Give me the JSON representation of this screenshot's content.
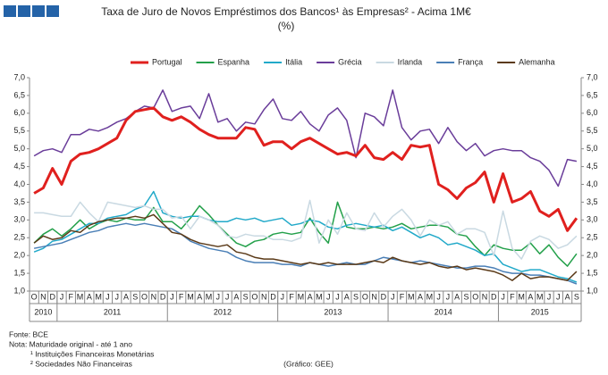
{
  "chart_data": {
    "type": "line",
    "title": "Taxa de Juro de Novos Empréstimos dos Bancos¹ às Empresas² - Acima 1M€",
    "subtitle": "(%)",
    "categories": [
      "O",
      "N",
      "D",
      "J",
      "F",
      "M",
      "A",
      "M",
      "J",
      "J",
      "A",
      "S",
      "O",
      "N",
      "D",
      "J",
      "F",
      "M",
      "A",
      "M",
      "J",
      "J",
      "A",
      "S",
      "O",
      "N",
      "D",
      "J",
      "F",
      "M",
      "A",
      "M",
      "J",
      "J",
      "A",
      "S",
      "O",
      "N",
      "D",
      "J",
      "F",
      "M",
      "A",
      "M",
      "J",
      "J",
      "A",
      "S",
      "O",
      "N",
      "D",
      "J",
      "F",
      "M",
      "A",
      "M",
      "J",
      "J",
      "A",
      "S"
    ],
    "years": [
      "2010",
      "2011",
      "2012",
      "2013",
      "2014",
      "2015"
    ],
    "ylim": [
      1,
      7
    ],
    "yticks": [
      {
        "value": 1,
        "label": "1,0"
      },
      {
        "value": 1.5,
        "label": "1,5"
      },
      {
        "value": 2,
        "label": "2,0"
      },
      {
        "value": 2.5,
        "label": "2,5"
      },
      {
        "value": 3,
        "label": "3,0"
      },
      {
        "value": 3.5,
        "label": "3,5"
      },
      {
        "value": 4,
        "label": "4,0"
      },
      {
        "value": 4.5,
        "label": "4,5"
      },
      {
        "value": 5,
        "label": "5,0"
      },
      {
        "value": 5.5,
        "label": "5,5"
      },
      {
        "value": 6,
        "label": "6,0"
      },
      {
        "value": 6.5,
        "label": "6,5"
      },
      {
        "value": 7,
        "label": "7,0"
      }
    ],
    "y2lim": [
      1,
      7
    ],
    "y2ticks": [
      {
        "value": 1,
        "label": "1,0"
      },
      {
        "value": 1.5,
        "label": "1,5"
      },
      {
        "value": 2,
        "label": "2,0"
      },
      {
        "value": 2.5,
        "label": "2,5"
      },
      {
        "value": 3,
        "label": "3,0"
      },
      {
        "value": 3.5,
        "label": "3,5"
      },
      {
        "value": 4,
        "label": "4,0"
      },
      {
        "value": 4.5,
        "label": "4,5"
      },
      {
        "value": 5,
        "label": "5,0"
      },
      {
        "value": 5.5,
        "label": "5,5"
      },
      {
        "value": 6,
        "label": "6,0"
      },
      {
        "value": 6.5,
        "label": "6,5"
      },
      {
        "value": 7,
        "label": "7,0"
      }
    ],
    "grid": false,
    "legend": "top",
    "series": [
      {
        "name": "Portugal",
        "color": "#e0201e",
        "values": [
          3.75,
          3.9,
          4.45,
          4.0,
          4.65,
          4.85,
          4.9,
          5.0,
          5.15,
          5.3,
          5.8,
          6.05,
          6.1,
          6.15,
          5.9,
          5.8,
          5.9,
          5.75,
          5.55,
          5.4,
          5.3,
          5.3,
          5.3,
          5.6,
          5.55,
          5.1,
          5.2,
          5.2,
          5.0,
          5.2,
          5.3,
          5.15,
          5.0,
          4.85,
          4.9,
          4.8,
          5.1,
          4.75,
          4.7,
          4.9,
          4.7,
          5.1,
          5.05,
          5.1,
          4.0,
          3.85,
          3.6,
          3.9,
          4.05,
          4.35,
          3.5,
          4.3,
          3.5,
          3.6,
          3.8,
          3.25,
          3.1,
          3.3,
          2.7,
          3.05
        ]
      },
      {
        "name": "Espanha",
        "color": "#23a04a",
        "values": [
          2.35,
          2.6,
          2.75,
          2.55,
          2.75,
          3.0,
          2.75,
          2.9,
          3.0,
          2.95,
          3.05,
          3.0,
          3.0,
          3.35,
          2.95,
          2.95,
          2.75,
          3.05,
          3.4,
          3.15,
          2.85,
          2.6,
          2.35,
          2.25,
          2.4,
          2.45,
          2.6,
          2.65,
          2.6,
          2.65,
          3.05,
          2.65,
          2.35,
          3.5,
          2.8,
          2.75,
          2.75,
          2.8,
          2.75,
          2.8,
          2.9,
          2.75,
          2.8,
          2.85,
          2.85,
          2.8,
          2.6,
          2.55,
          2.25,
          2.0,
          2.3,
          2.2,
          2.15,
          2.15,
          2.35,
          2.05,
          2.3,
          1.95,
          1.7,
          2.05
        ]
      },
      {
        "name": "Itália",
        "color": "#21a9c9",
        "values": [
          2.1,
          2.2,
          2.4,
          2.45,
          2.6,
          2.75,
          2.9,
          2.9,
          3.05,
          3.1,
          3.15,
          3.3,
          3.4,
          3.8,
          3.2,
          3.1,
          3.05,
          3.1,
          3.1,
          3.0,
          2.95,
          2.95,
          3.05,
          3.0,
          3.05,
          2.95,
          3.0,
          3.05,
          2.85,
          2.9,
          3.0,
          2.95,
          2.8,
          2.75,
          2.85,
          2.9,
          2.85,
          2.8,
          2.85,
          2.7,
          2.8,
          2.65,
          2.5,
          2.6,
          2.5,
          2.3,
          2.35,
          2.25,
          2.15,
          2.0,
          2.05,
          1.75,
          1.65,
          1.55,
          1.6,
          1.6,
          1.5,
          1.4,
          1.35,
          1.25
        ]
      },
      {
        "name": "Grécia",
        "color": "#6a3d9a",
        "values": [
          4.8,
          4.95,
          5.0,
          4.9,
          5.4,
          5.4,
          5.55,
          5.5,
          5.6,
          5.75,
          5.85,
          6.05,
          6.2,
          6.15,
          6.65,
          6.05,
          6.15,
          6.2,
          5.85,
          6.55,
          5.75,
          5.85,
          5.5,
          5.75,
          5.7,
          6.1,
          6.4,
          5.85,
          5.8,
          6.05,
          5.7,
          5.5,
          5.95,
          6.15,
          5.8,
          4.75,
          6.0,
          5.9,
          5.65,
          6.65,
          5.6,
          5.25,
          5.5,
          5.55,
          5.15,
          5.6,
          5.2,
          4.95,
          5.15,
          4.8,
          4.95,
          5.0,
          4.95,
          4.95,
          4.75,
          4.65,
          4.4,
          3.95,
          4.7,
          4.65
        ]
      },
      {
        "name": "Irlanda",
        "color": "#c9d9e2",
        "values": [
          3.2,
          3.2,
          3.15,
          3.1,
          3.1,
          3.5,
          3.2,
          2.95,
          3.5,
          3.45,
          3.4,
          3.35,
          3.4,
          3.3,
          3.3,
          3.05,
          3.1,
          2.75,
          3.1,
          3.0,
          2.85,
          2.55,
          2.5,
          2.6,
          2.55,
          2.55,
          2.45,
          2.45,
          2.4,
          2.5,
          3.55,
          2.35,
          3.0,
          2.6,
          3.2,
          2.75,
          2.7,
          3.2,
          2.8,
          3.1,
          3.3,
          3.0,
          2.55,
          3.0,
          2.85,
          2.95,
          2.6,
          2.75,
          2.75,
          2.65,
          2.0,
          3.25,
          2.2,
          1.9,
          2.4,
          2.55,
          2.45,
          2.2,
          2.3,
          2.55
        ]
      },
      {
        "name": "França",
        "color": "#4a7fb6",
        "values": [
          2.2,
          2.25,
          2.3,
          2.35,
          2.45,
          2.55,
          2.65,
          2.7,
          2.8,
          2.85,
          2.9,
          2.85,
          2.9,
          2.85,
          2.8,
          2.75,
          2.6,
          2.4,
          2.3,
          2.2,
          2.15,
          2.1,
          1.95,
          1.85,
          1.8,
          1.8,
          1.8,
          1.75,
          1.75,
          1.7,
          1.8,
          1.75,
          1.7,
          1.75,
          1.8,
          1.75,
          1.75,
          1.85,
          1.95,
          1.9,
          1.85,
          1.8,
          1.85,
          1.8,
          1.75,
          1.7,
          1.65,
          1.65,
          1.7,
          1.7,
          1.65,
          1.55,
          1.5,
          1.5,
          1.45,
          1.45,
          1.4,
          1.35,
          1.3,
          1.2
        ]
      },
      {
        "name": "Alemanha",
        "color": "#5b3a18",
        "values": [
          2.35,
          2.55,
          2.45,
          2.5,
          2.7,
          2.65,
          2.85,
          2.95,
          3.0,
          3.05,
          3.05,
          3.1,
          3.05,
          3.15,
          2.9,
          2.65,
          2.6,
          2.45,
          2.35,
          2.3,
          2.25,
          2.3,
          2.1,
          2.05,
          1.95,
          1.9,
          1.9,
          1.85,
          1.8,
          1.75,
          1.8,
          1.75,
          1.8,
          1.75,
          1.75,
          1.75,
          1.8,
          1.85,
          1.8,
          1.95,
          1.85,
          1.8,
          1.75,
          1.8,
          1.7,
          1.65,
          1.7,
          1.6,
          1.65,
          1.6,
          1.55,
          1.45,
          1.3,
          1.5,
          1.35,
          1.4,
          1.4,
          1.35,
          1.3,
          1.55
        ]
      }
    ],
    "notes": [
      "Fonte: BCE",
      "Nota: Maturidade original - até 1 ano",
      "¹ Instituições Financeiras Monetárias",
      "² Sociedades Não Financeiras"
    ],
    "credit": "(Gráfico: GEE)"
  }
}
